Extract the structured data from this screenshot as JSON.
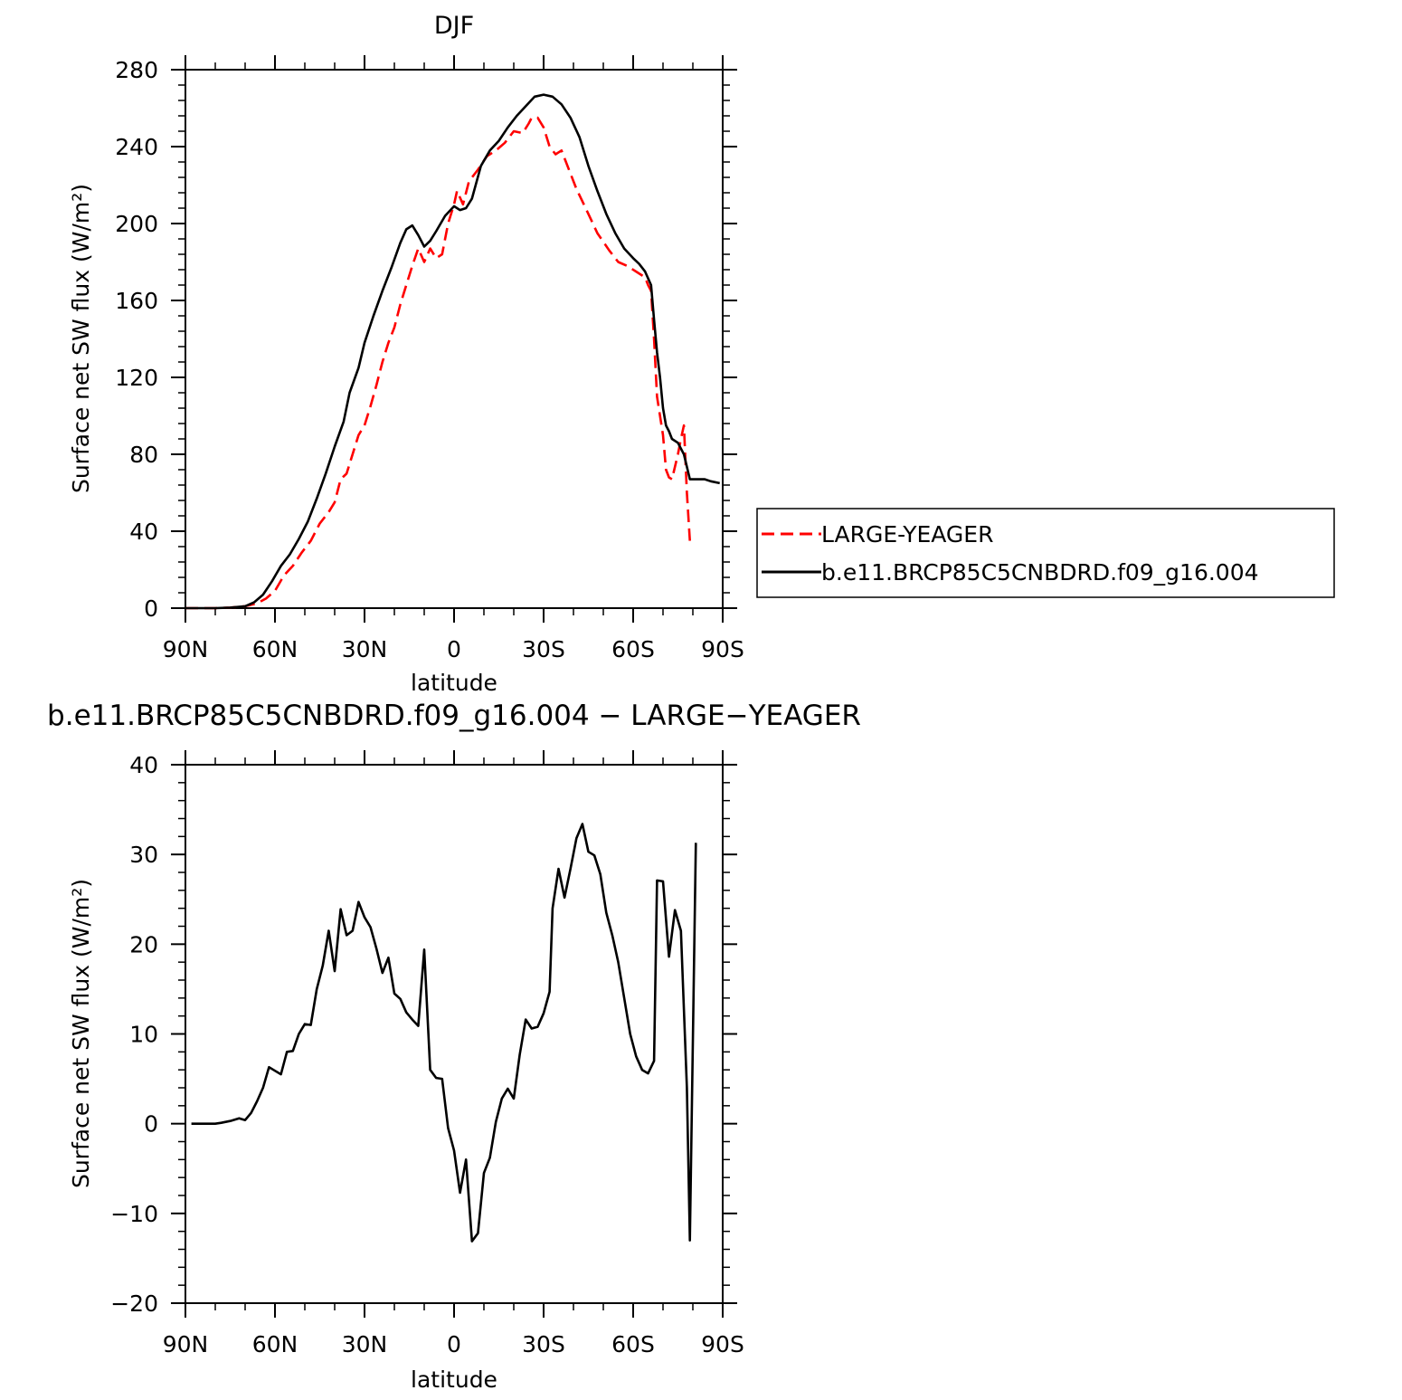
{
  "chart_data": [
    {
      "type": "line",
      "title": "DJF",
      "xlabel": "latitude",
      "ylabel": "Surface net SW flux (W/m²)",
      "xlim": [
        90,
        -90
      ],
      "ylim": [
        0,
        280
      ],
      "x_ticks": [
        {
          "value": 90,
          "label": "90N"
        },
        {
          "value": 60,
          "label": "60N"
        },
        {
          "value": 30,
          "label": "30N"
        },
        {
          "value": 0,
          "label": "0"
        },
        {
          "value": -30,
          "label": "30S"
        },
        {
          "value": -60,
          "label": "60S"
        },
        {
          "value": -90,
          "label": "90S"
        }
      ],
      "y_ticks": [
        0,
        40,
        80,
        120,
        160,
        200,
        240,
        280
      ],
      "legend": {
        "position": "right"
      },
      "series": [
        {
          "name": "LARGE-YEAGER",
          "color": "#ff0000",
          "dash": "dashed",
          "points": [
            [
              90,
              0
            ],
            [
              80,
              0
            ],
            [
              75,
              0.3
            ],
            [
              70,
              1
            ],
            [
              66,
              2.5
            ],
            [
              63,
              5
            ],
            [
              60,
              9
            ],
            [
              57,
              17
            ],
            [
              54,
              22
            ],
            [
              51,
              29
            ],
            [
              48,
              35
            ],
            [
              45,
              44
            ],
            [
              42,
              50
            ],
            [
              40,
              55
            ],
            [
              38,
              67
            ],
            [
              36,
              70
            ],
            [
              34,
              80
            ],
            [
              32,
              90
            ],
            [
              30,
              95
            ],
            [
              28,
              105
            ],
            [
              26,
              116
            ],
            [
              24,
              128
            ],
            [
              22,
              138
            ],
            [
              20,
              146
            ],
            [
              18,
              158
            ],
            [
              16,
              168
            ],
            [
              14,
              178
            ],
            [
              12,
              187
            ],
            [
              10,
              180
            ],
            [
              8,
              187
            ],
            [
              6,
              182
            ],
            [
              4,
              184
            ],
            [
              2,
              200
            ],
            [
              0,
              210
            ],
            [
              -1,
              217
            ],
            [
              -3,
              210
            ],
            [
              -5,
              222
            ],
            [
              -8,
              228
            ],
            [
              -11,
              235
            ],
            [
              -14,
              238
            ],
            [
              -17,
              242
            ],
            [
              -20,
              248
            ],
            [
              -23,
              247
            ],
            [
              -25,
              252
            ],
            [
              -26,
              255
            ],
            [
              -28,
              255
            ],
            [
              -30,
              250
            ],
            [
              -32,
              240
            ],
            [
              -34,
              236
            ],
            [
              -36,
              238
            ],
            [
              -38,
              230
            ],
            [
              -41,
              218
            ],
            [
              -45,
              205
            ],
            [
              -48,
              195
            ],
            [
              -52,
              186
            ],
            [
              -55,
              180
            ],
            [
              -58,
              178
            ],
            [
              -61,
              175
            ],
            [
              -64,
              172
            ],
            [
              -65,
              168
            ],
            [
              -66,
              165
            ],
            [
              -67,
              140
            ],
            [
              -68,
              110
            ],
            [
              -70,
              90
            ],
            [
              -71,
              72
            ],
            [
              -72,
              68
            ],
            [
              -73,
              67
            ],
            [
              -75,
              80
            ],
            [
              -76,
              88
            ],
            [
              -77,
              95
            ],
            [
              -78,
              60
            ],
            [
              -79,
              35
            ]
          ]
        },
        {
          "name": "b.e11.BRCP85C5CNBDRD.f09_g16.004",
          "color": "#000000",
          "dash": "solid",
          "points": [
            [
              90,
              0
            ],
            [
              80,
              0
            ],
            [
              75,
              0.3
            ],
            [
              70,
              1
            ],
            [
              67,
              3
            ],
            [
              64,
              7
            ],
            [
              61,
              14
            ],
            [
              58,
              22
            ],
            [
              55,
              28
            ],
            [
              52,
              36
            ],
            [
              49,
              45
            ],
            [
              46,
              57
            ],
            [
              43,
              70
            ],
            [
              40,
              84
            ],
            [
              37,
              97
            ],
            [
              35,
              112
            ],
            [
              32,
              125
            ],
            [
              30,
              138
            ],
            [
              27,
              152
            ],
            [
              24,
              165
            ],
            [
              21,
              177
            ],
            [
              18,
              190
            ],
            [
              16,
              197
            ],
            [
              14,
              199
            ],
            [
              12,
              194
            ],
            [
              10,
              188
            ],
            [
              8,
              191
            ],
            [
              6,
              196
            ],
            [
              3,
              204
            ],
            [
              0,
              209
            ],
            [
              -2,
              207
            ],
            [
              -4,
              208
            ],
            [
              -6,
              213
            ],
            [
              -9,
              230
            ],
            [
              -12,
              238
            ],
            [
              -15,
              243
            ],
            [
              -18,
              250
            ],
            [
              -21,
              256
            ],
            [
              -24,
              261
            ],
            [
              -27,
              266
            ],
            [
              -30,
              267
            ],
            [
              -33,
              266
            ],
            [
              -36,
              262
            ],
            [
              -39,
              255
            ],
            [
              -42,
              245
            ],
            [
              -45,
              230
            ],
            [
              -48,
              217
            ],
            [
              -51,
              205
            ],
            [
              -54,
              195
            ],
            [
              -57,
              187
            ],
            [
              -60,
              182
            ],
            [
              -62,
              179
            ],
            [
              -64,
              175
            ],
            [
              -66,
              168
            ],
            [
              -67,
              150
            ],
            [
              -68,
              133
            ],
            [
              -69,
              120
            ],
            [
              -70,
              104
            ],
            [
              -71,
              95
            ],
            [
              -72,
              92
            ],
            [
              -73,
              88
            ],
            [
              -75,
              86
            ],
            [
              -77,
              80
            ],
            [
              -79,
              67
            ],
            [
              -81,
              67
            ],
            [
              -84,
              67
            ],
            [
              -86,
              66
            ],
            [
              -89,
              65
            ]
          ]
        }
      ]
    },
    {
      "type": "line",
      "title": "b.e11.BRCP85C5CNBDRD.f09_g16.004 − LARGE−YEAGER",
      "xlabel": "latitude",
      "ylabel": "Surface net SW flux (W/m²)",
      "xlim": [
        90,
        -90
      ],
      "ylim": [
        -20,
        40
      ],
      "x_ticks": [
        {
          "value": 90,
          "label": "90N"
        },
        {
          "value": 60,
          "label": "60N"
        },
        {
          "value": 30,
          "label": "30N"
        },
        {
          "value": 0,
          "label": "0"
        },
        {
          "value": -30,
          "label": "30S"
        },
        {
          "value": -60,
          "label": "60S"
        },
        {
          "value": -90,
          "label": "90S"
        }
      ],
      "y_ticks": [
        -20,
        -10,
        0,
        10,
        20,
        30,
        40
      ],
      "series": [
        {
          "color": "#000000",
          "dash": "solid",
          "points": [
            [
              88,
              0
            ],
            [
              80,
              0
            ],
            [
              78,
              0.1
            ],
            [
              75,
              0.3
            ],
            [
              72,
              0.6
            ],
            [
              70,
              0.4
            ],
            [
              68,
              1.2
            ],
            [
              66,
              2.5
            ],
            [
              64,
              4
            ],
            [
              62,
              6.3
            ],
            [
              60,
              5.9
            ],
            [
              58,
              5.5
            ],
            [
              56,
              8
            ],
            [
              54,
              8.1
            ],
            [
              52,
              10
            ],
            [
              50,
              11.1
            ],
            [
              48,
              11
            ],
            [
              46,
              15
            ],
            [
              44,
              17.6
            ],
            [
              42,
              21.5
            ],
            [
              40,
              17
            ],
            [
              38,
              23.9
            ],
            [
              36,
              21
            ],
            [
              34,
              21.5
            ],
            [
              32,
              24.7
            ],
            [
              30,
              23
            ],
            [
              28,
              21.9
            ],
            [
              26,
              19.5
            ],
            [
              24,
              16.8
            ],
            [
              22,
              18.5
            ],
            [
              20,
              14.5
            ],
            [
              18,
              13.9
            ],
            [
              16,
              12.4
            ],
            [
              14,
              11.6
            ],
            [
              12,
              10.9
            ],
            [
              10,
              19.4
            ],
            [
              8,
              6
            ],
            [
              6,
              5.1
            ],
            [
              4,
              5
            ],
            [
              2,
              -0.5
            ],
            [
              0,
              -3
            ],
            [
              -2,
              -7.7
            ],
            [
              -4,
              -4
            ],
            [
              -6,
              -13.1
            ],
            [
              -8,
              -12.2
            ],
            [
              -10,
              -5.5
            ],
            [
              -12,
              -3.8
            ],
            [
              -14,
              0.2
            ],
            [
              -16,
              2.8
            ],
            [
              -18,
              3.9
            ],
            [
              -20,
              2.8
            ],
            [
              -22,
              7.7
            ],
            [
              -24,
              11.6
            ],
            [
              -26,
              10.6
            ],
            [
              -28,
              10.8
            ],
            [
              -30,
              12.3
            ],
            [
              -32,
              14.7
            ],
            [
              -33,
              24
            ],
            [
              -35,
              28.4
            ],
            [
              -37,
              25.2
            ],
            [
              -39,
              28.4
            ],
            [
              -41,
              31.8
            ],
            [
              -43,
              33.4
            ],
            [
              -45,
              30.3
            ],
            [
              -47,
              29.9
            ],
            [
              -49,
              27.8
            ],
            [
              -51,
              23.5
            ],
            [
              -53,
              21
            ],
            [
              -55,
              18
            ],
            [
              -57,
              14
            ],
            [
              -59,
              10
            ],
            [
              -61,
              7.5
            ],
            [
              -63,
              6
            ],
            [
              -65,
              5.6
            ],
            [
              -67,
              7
            ],
            [
              -68,
              27.1
            ],
            [
              -70,
              27
            ],
            [
              -72,
              18.6
            ],
            [
              -74,
              23.8
            ],
            [
              -76,
              21.5
            ],
            [
              -78,
              4
            ],
            [
              -79,
              -13
            ],
            [
              -81,
              31.3
            ]
          ]
        }
      ]
    }
  ]
}
